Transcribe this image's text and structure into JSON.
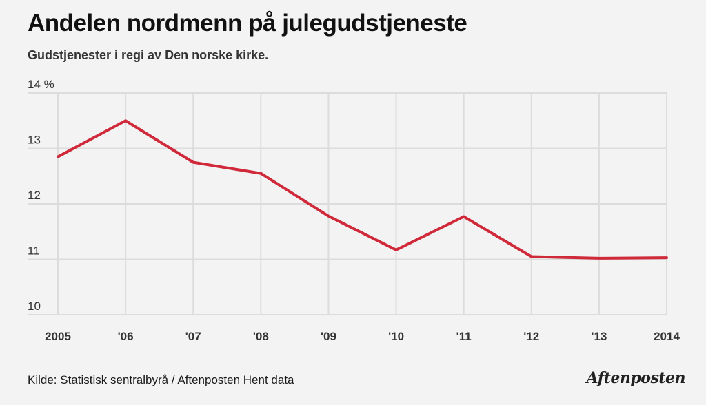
{
  "title": "Andelen nordmenn på julegudstjeneste",
  "subtitle": "Gudstjenester i regi av Den norske kirke.",
  "footer": {
    "source": "Kilde: Statistisk sentralbyrå / Aftenposten Hent data",
    "logo": "Aftenposten"
  },
  "colors": {
    "line": "#d0293a",
    "grid": "#dcdcdc",
    "background": "#f3f3f3"
  },
  "chart_data": {
    "type": "line",
    "title": "Andelen nordmenn på julegudstjeneste",
    "subtitle": "Gudstjenester i regi av Den norske kirke.",
    "categories": [
      "2005",
      "'06",
      "'07",
      "'08",
      "'09",
      "'10",
      "'11",
      "'12",
      "'13",
      "2014"
    ],
    "x": [
      2005,
      2006,
      2007,
      2008,
      2009,
      2010,
      2011,
      2012,
      2013,
      2014
    ],
    "values": [
      12.85,
      13.5,
      12.75,
      12.55,
      11.78,
      11.17,
      11.77,
      11.05,
      11.02,
      11.03
    ],
    "ylim": [
      10,
      14
    ],
    "yticks": [
      "10",
      "11",
      "12",
      "13",
      "14 %"
    ],
    "grid": true,
    "xlabel": "",
    "ylabel": ""
  }
}
